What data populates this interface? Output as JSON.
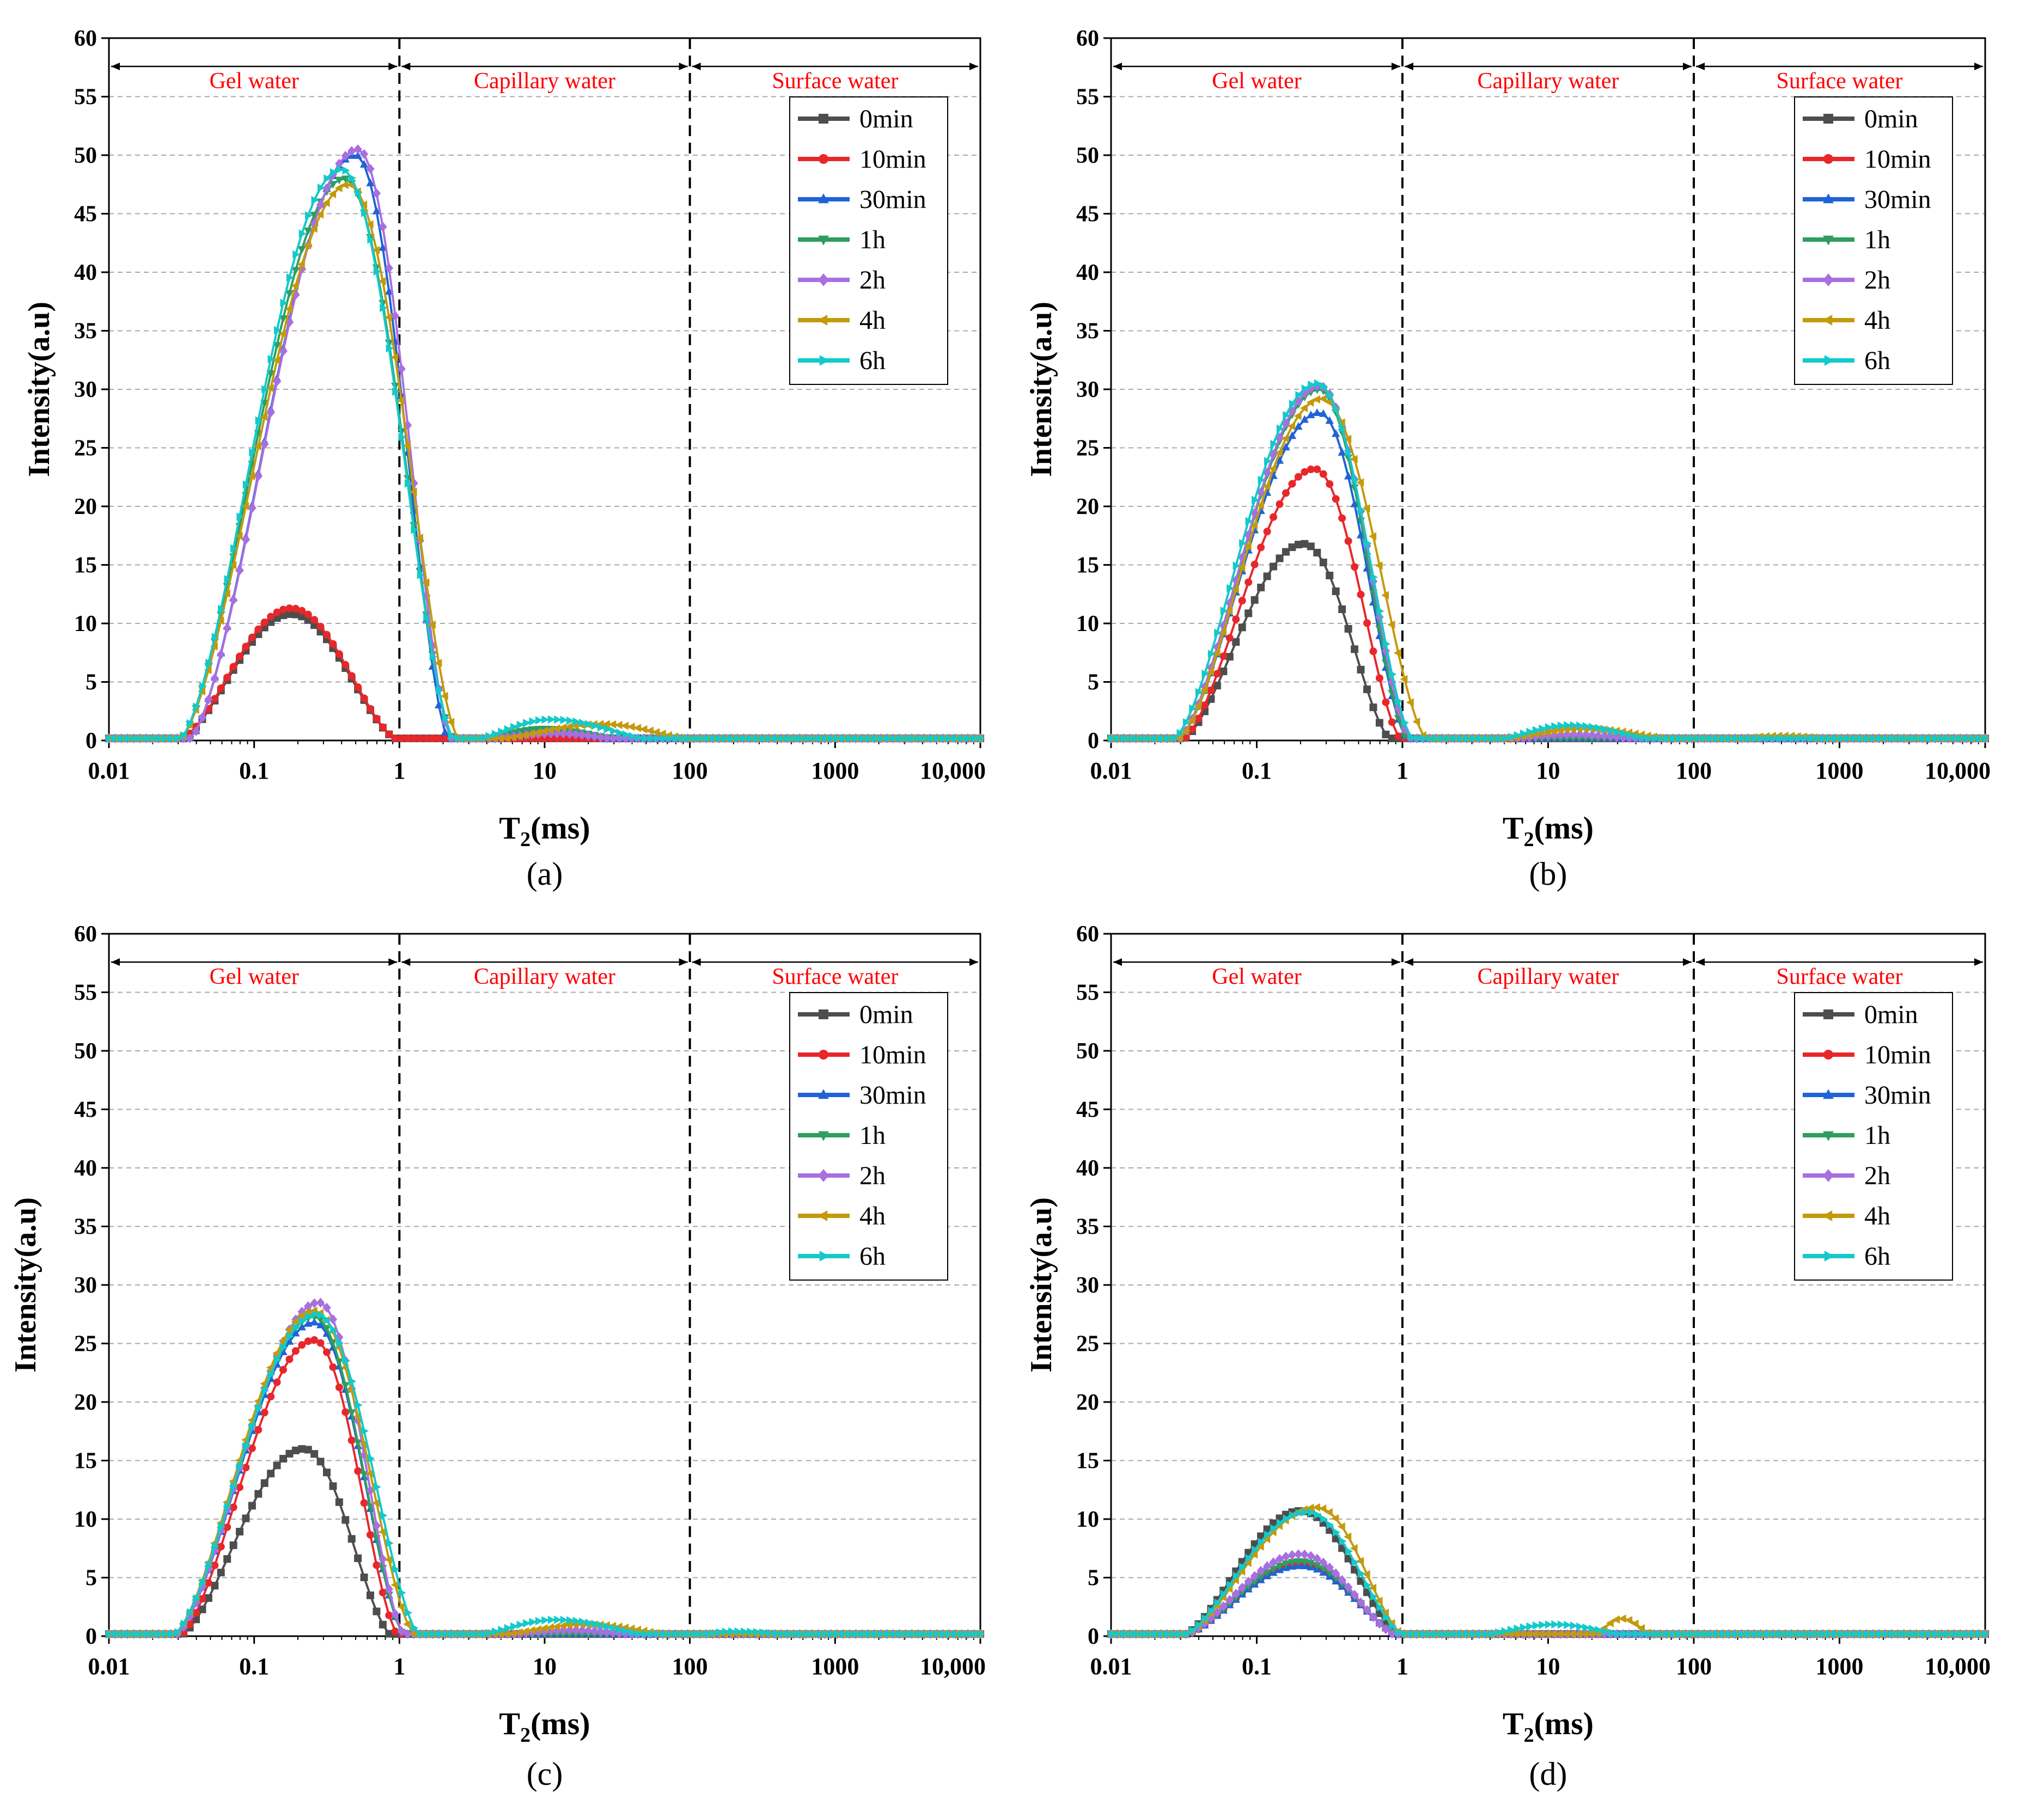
{
  "colors": {
    "0min": "#4d4d4d",
    "10min": "#e8272b",
    "30min": "#1f63d6",
    "1h": "#2e9e5e",
    "2h": "#a86fe0",
    "4h": "#c49a0c",
    "6h": "#14c9c9",
    "region_text": "#ff0000",
    "axis": "#000000",
    "grid": "#a9a9a9"
  },
  "chart_data": [
    {
      "panel": "(a)",
      "type": "line",
      "title": "",
      "xlabel": "T2(ms)",
      "ylabel": "Intensity(a.u)",
      "xscale": "log",
      "xlim": [
        0.01,
        10000
      ],
      "ylim": [
        0,
        60
      ],
      "x_ticks": [
        "0.01",
        "0.1",
        "1",
        "10",
        "100",
        "1000",
        "10,000"
      ],
      "y_ticks": [
        "0",
        "5",
        "10",
        "15",
        "20",
        "25",
        "30",
        "35",
        "40",
        "45",
        "50",
        "55",
        "60"
      ],
      "regions": [
        {
          "label": "Gel water",
          "from": 0.01,
          "to": 1
        },
        {
          "label": "Capillary water",
          "from": 1,
          "to": 100
        },
        {
          "label": "Surface water",
          "from": 100,
          "to": 10000
        }
      ],
      "legend_position": "top-right",
      "series": [
        {
          "name": "0min",
          "peaks": [
            {
              "center": 0.18,
              "amp": 10.8,
              "left": 0.03,
              "right": 1.0
            }
          ]
        },
        {
          "name": "10min",
          "peaks": [
            {
              "center": 0.18,
              "amp": 11.3,
              "left": 0.03,
              "right": 1.0
            }
          ]
        },
        {
          "name": "30min",
          "peaks": [
            {
              "center": 0.5,
              "amp": 50.0,
              "left": 0.035,
              "right": 2.2
            },
            {
              "center": 10,
              "amp": 0.8,
              "left": 3,
              "right": 40
            }
          ]
        },
        {
          "name": "1h",
          "peaks": [
            {
              "center": 0.42,
              "amp": 48.0,
              "left": 0.03,
              "right": 2.4
            },
            {
              "center": 10,
              "amp": 1.0,
              "left": 3,
              "right": 40
            }
          ]
        },
        {
          "name": "2h",
          "peaks": [
            {
              "center": 0.52,
              "amp": 50.5,
              "left": 0.035,
              "right": 2.3
            },
            {
              "center": 12,
              "amp": 0.6,
              "left": 3,
              "right": 40
            }
          ]
        },
        {
          "name": "4h",
          "peaks": [
            {
              "center": 0.45,
              "amp": 47.5,
              "left": 0.03,
              "right": 2.6
            },
            {
              "center": 25,
              "amp": 1.4,
              "left": 4,
              "right": 120
            }
          ]
        },
        {
          "name": "6h",
          "peaks": [
            {
              "center": 0.4,
              "amp": 48.8,
              "left": 0.03,
              "right": 2.4
            },
            {
              "center": 11,
              "amp": 1.8,
              "left": 3,
              "right": 60
            }
          ]
        }
      ]
    },
    {
      "panel": "(b)",
      "type": "line",
      "title": "",
      "xlabel": "T2(ms)",
      "ylabel": "Intensity(a.u)",
      "xscale": "log",
      "xlim": [
        0.01,
        10000
      ],
      "ylim": [
        0,
        60
      ],
      "x_ticks": [
        "0.01",
        "0.1",
        "1",
        "10",
        "100",
        "1000",
        "10,000"
      ],
      "y_ticks": [
        "0",
        "5",
        "10",
        "15",
        "20",
        "25",
        "30",
        "35",
        "40",
        "45",
        "50",
        "55",
        "60"
      ],
      "regions": [
        {
          "label": "Gel water",
          "from": 0.01,
          "to": 1
        },
        {
          "label": "Capillary water",
          "from": 1,
          "to": 100
        },
        {
          "label": "Surface water",
          "from": 100,
          "to": 10000
        }
      ],
      "legend_position": "top-right",
      "series": [
        {
          "name": "0min",
          "peaks": [
            {
              "center": 0.21,
              "amp": 16.8,
              "left": 0.03,
              "right": 0.85
            }
          ]
        },
        {
          "name": "10min",
          "peaks": [
            {
              "center": 0.25,
              "amp": 23.2,
              "left": 0.03,
              "right": 1.0
            }
          ]
        },
        {
          "name": "30min",
          "peaks": [
            {
              "center": 0.27,
              "amp": 28.0,
              "left": 0.028,
              "right": 1.1
            }
          ]
        },
        {
          "name": "1h",
          "peaks": [
            {
              "center": 0.27,
              "amp": 30.0,
              "left": 0.028,
              "right": 1.1
            }
          ]
        },
        {
          "name": "2h",
          "peaks": [
            {
              "center": 0.27,
              "amp": 30.3,
              "left": 0.028,
              "right": 1.15
            },
            {
              "center": 15,
              "amp": 0.5,
              "left": 4,
              "right": 60
            }
          ]
        },
        {
          "name": "4h",
          "peaks": [
            {
              "center": 0.28,
              "amp": 29.2,
              "left": 0.028,
              "right": 1.5
            },
            {
              "center": 18,
              "amp": 1.0,
              "left": 4,
              "right": 90
            },
            {
              "center": 400,
              "amp": 0.4,
              "left": 150,
              "right": 1200
            }
          ]
        },
        {
          "name": "6h",
          "peaks": [
            {
              "center": 0.26,
              "amp": 30.5,
              "left": 0.026,
              "right": 1.2
            },
            {
              "center": 14,
              "amp": 1.3,
              "left": 4,
              "right": 60
            }
          ]
        }
      ]
    },
    {
      "panel": "(c)",
      "type": "line",
      "title": "",
      "xlabel": "T2(ms)",
      "ylabel": "Intensity(a.u)",
      "xscale": "log",
      "xlim": [
        0.01,
        10000
      ],
      "ylim": [
        0,
        60
      ],
      "x_ticks": [
        "0.01",
        "0.1",
        "1",
        "10",
        "100",
        "1000",
        "10,000"
      ],
      "y_ticks": [
        "0",
        "5",
        "10",
        "15",
        "20",
        "25",
        "30",
        "35",
        "40",
        "45",
        "50",
        "55",
        "60"
      ],
      "regions": [
        {
          "label": "Gel water",
          "from": 0.01,
          "to": 1
        },
        {
          "label": "Capillary water",
          "from": 1,
          "to": 100
        },
        {
          "label": "Surface water",
          "from": 100,
          "to": 10000
        }
      ],
      "legend_position": "top-right",
      "series": [
        {
          "name": "0min",
          "peaks": [
            {
              "center": 0.22,
              "amp": 16.0,
              "left": 0.03,
              "right": 0.9
            }
          ]
        },
        {
          "name": "10min",
          "peaks": [
            {
              "center": 0.26,
              "amp": 25.3,
              "left": 0.03,
              "right": 1.0
            }
          ]
        },
        {
          "name": "30min",
          "peaks": [
            {
              "center": 0.26,
              "amp": 26.8,
              "left": 0.028,
              "right": 1.1
            }
          ]
        },
        {
          "name": "1h",
          "peaks": [
            {
              "center": 0.26,
              "amp": 27.3,
              "left": 0.028,
              "right": 1.1
            }
          ]
        },
        {
          "name": "2h",
          "peaks": [
            {
              "center": 0.28,
              "amp": 28.5,
              "left": 0.028,
              "right": 1.1
            },
            {
              "center": 15,
              "amp": 0.5,
              "left": 4,
              "right": 60
            }
          ]
        },
        {
          "name": "4h",
          "peaks": [
            {
              "center": 0.26,
              "amp": 27.8,
              "left": 0.027,
              "right": 1.3
            },
            {
              "center": 20,
              "amp": 1.0,
              "left": 4,
              "right": 90
            }
          ]
        },
        {
          "name": "6h",
          "peaks": [
            {
              "center": 0.27,
              "amp": 27.5,
              "left": 0.027,
              "right": 1.4
            },
            {
              "center": 12,
              "amp": 1.4,
              "left": 3,
              "right": 60
            },
            {
              "center": 200,
              "amp": 0.4,
              "left": 100,
              "right": 700
            }
          ]
        }
      ]
    },
    {
      "panel": "(d)",
      "type": "line",
      "title": "",
      "xlabel": "T2(ms)",
      "ylabel": "Intensity(a.u)",
      "xscale": "log",
      "xlim": [
        0.01,
        10000
      ],
      "ylim": [
        0,
        60
      ],
      "x_ticks": [
        "0.01",
        "0.1",
        "1",
        "10",
        "100",
        "1000",
        "10,000"
      ],
      "y_ticks": [
        "0",
        "5",
        "10",
        "15",
        "20",
        "25",
        "30",
        "35",
        "40",
        "45",
        "50",
        "55",
        "60"
      ],
      "regions": [
        {
          "label": "Gel water",
          "from": 0.01,
          "to": 1
        },
        {
          "label": "Capillary water",
          "from": 1,
          "to": 100
        },
        {
          "label": "Surface water",
          "from": 100,
          "to": 10000
        }
      ],
      "legend_position": "top-right",
      "series": [
        {
          "name": "0min",
          "peaks": [
            {
              "center": 0.2,
              "amp": 10.7,
              "left": 0.03,
              "right": 1.0
            }
          ]
        },
        {
          "name": "10min",
          "peaks": [
            {
              "center": 0.2,
              "amp": 6.2,
              "left": 0.03,
              "right": 1.0
            }
          ]
        },
        {
          "name": "30min",
          "peaks": [
            {
              "center": 0.2,
              "amp": 6.0,
              "left": 0.03,
              "right": 1.0
            }
          ]
        },
        {
          "name": "1h",
          "peaks": [
            {
              "center": 0.2,
              "amp": 6.4,
              "left": 0.03,
              "right": 1.0
            }
          ]
        },
        {
          "name": "2h",
          "peaks": [
            {
              "center": 0.2,
              "amp": 7.0,
              "left": 0.03,
              "right": 0.95
            }
          ]
        },
        {
          "name": "4h",
          "peaks": [
            {
              "center": 0.26,
              "amp": 11.0,
              "left": 0.03,
              "right": 1.05
            },
            {
              "center": 32,
              "amp": 1.5,
              "left": 20,
              "right": 55
            }
          ]
        },
        {
          "name": "6h",
          "peaks": [
            {
              "center": 0.22,
              "amp": 10.6,
              "left": 0.03,
              "right": 1.05
            },
            {
              "center": 11,
              "amp": 1.0,
              "left": 3,
              "right": 40
            }
          ]
        }
      ]
    }
  ]
}
